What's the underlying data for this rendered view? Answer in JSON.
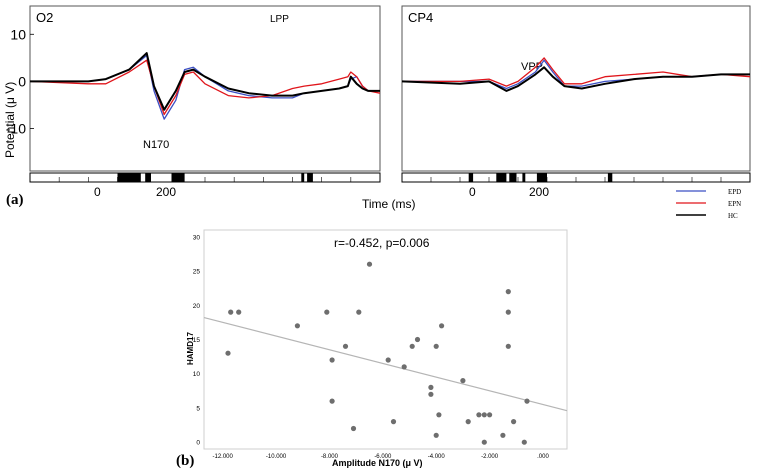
{
  "chart_data": [
    {
      "type": "line",
      "panel_label": "(a)",
      "title": "O2",
      "ylabel": "Potential (μ V)",
      "yticks": [
        "10",
        "0",
        "-10"
      ],
      "ylim": [
        -19,
        16
      ],
      "xlim": [
        -300,
        900
      ],
      "xticks": [
        "0",
        "200"
      ],
      "xlabel": "Time (ms)",
      "annotations": [
        "N170",
        "LPP"
      ],
      "series": [
        {
          "name": "EPD",
          "color": "#3b4fc4",
          "x": [
            -300,
            -100,
            -40,
            40,
            100,
            125,
            160,
            200,
            230,
            260,
            300,
            380,
            450,
            530,
            600,
            640,
            700,
            760,
            790,
            800,
            820,
            840,
            860,
            900
          ],
          "y": [
            0,
            0,
            0.5,
            2.5,
            5.5,
            -2,
            -8,
            -4,
            2.5,
            3,
            1,
            -2,
            -3,
            -3.5,
            -3.5,
            -2.5,
            -2,
            -1.5,
            -1,
            0.5,
            1,
            -1,
            -2,
            -2
          ]
        },
        {
          "name": "EPN",
          "color": "#e0151b",
          "x": [
            -300,
            -100,
            -40,
            40,
            100,
            125,
            160,
            200,
            230,
            260,
            300,
            380,
            450,
            530,
            600,
            640,
            700,
            760,
            790,
            800,
            820,
            840,
            860,
            900
          ],
          "y": [
            0,
            -0.5,
            -0.5,
            2,
            4.5,
            -1,
            -7,
            -3,
            1.5,
            2,
            -0.5,
            -3,
            -3.5,
            -3,
            -1.5,
            -1,
            -0.5,
            0.5,
            1,
            2,
            1,
            -1,
            -2,
            -2.5
          ]
        },
        {
          "name": "HC",
          "color": "#000000",
          "x": [
            -300,
            -100,
            -40,
            40,
            100,
            125,
            160,
            200,
            230,
            260,
            300,
            380,
            450,
            530,
            600,
            640,
            700,
            760,
            790,
            800,
            820,
            840,
            860,
            900
          ],
          "y": [
            0,
            0,
            0.5,
            2.5,
            6,
            -1,
            -6,
            -2,
            2,
            2.5,
            1,
            -1.5,
            -2.5,
            -3,
            -3,
            -2.5,
            -2,
            -1.5,
            -1,
            1,
            -0.5,
            -1.5,
            -2,
            -2
          ]
        }
      ],
      "significance_bars": [
        [
          0,
          80
        ],
        [
          95,
          115
        ],
        [
          185,
          230
        ],
        [
          630,
          640
        ],
        [
          650,
          670
        ]
      ]
    },
    {
      "type": "line",
      "title": "CP4",
      "xlim": [
        -300,
        900
      ],
      "xticks": [
        "0",
        "200"
      ],
      "annotations": [
        "VPP"
      ],
      "series": [
        {
          "name": "EPD",
          "color": "#3b4fc4",
          "x": [
            -300,
            -100,
            0,
            60,
            100,
            160,
            190,
            220,
            260,
            320,
            400,
            500,
            600,
            700,
            800,
            900
          ],
          "y": [
            0,
            0,
            0,
            -1.5,
            -0.5,
            2,
            4.5,
            2,
            -1,
            -1,
            0,
            0.5,
            1,
            1,
            1.5,
            1.5
          ]
        },
        {
          "name": "EPN",
          "color": "#e0151b",
          "x": [
            -300,
            -100,
            0,
            60,
            100,
            160,
            190,
            220,
            260,
            320,
            400,
            500,
            600,
            700,
            800,
            900
          ],
          "y": [
            0,
            0,
            0.5,
            -1,
            0,
            3,
            5,
            2.5,
            -0.5,
            -0.5,
            1,
            1.5,
            2,
            1,
            1.5,
            1
          ]
        },
        {
          "name": "HC",
          "color": "#000000",
          "x": [
            -300,
            -100,
            0,
            60,
            100,
            160,
            190,
            220,
            260,
            320,
            400,
            500,
            600,
            700,
            800,
            900
          ],
          "y": [
            0,
            -0.5,
            0,
            -2,
            -1,
            1.5,
            3,
            1,
            -1,
            -1.5,
            -0.5,
            0.5,
            1,
            1,
            1.5,
            1.5
          ]
        }
      ],
      "significance_bars": [
        [
          -70,
          -55
        ],
        [
          25,
          60
        ],
        [
          70,
          95
        ],
        [
          115,
          125
        ],
        [
          165,
          200
        ],
        [
          410,
          425
        ]
      ]
    },
    {
      "type": "scatter",
      "panel_label": "(b)",
      "title": "r=-0.452, p=0.006",
      "xlabel": "Amplitude N170 (μ V)",
      "ylabel": "HAMD17",
      "xlim": [
        -12.7,
        0.9
      ],
      "ylim": [
        -1,
        31
      ],
      "xticks": [
        -12,
        -10,
        -8,
        -6,
        -4,
        -2,
        0
      ],
      "xtick_labels": [
        "-12.000",
        "-10.000",
        "-8.000",
        "-6.000",
        "-4.000",
        "-2.000",
        ".000"
      ],
      "yticks": [
        0,
        5,
        10,
        15,
        20,
        25,
        30
      ],
      "ytick_labels": [
        "0",
        "5",
        "10",
        "15",
        "20",
        "25",
        "30"
      ],
      "points": [
        [
          -11.8,
          13
        ],
        [
          -11.7,
          19
        ],
        [
          -11.4,
          19
        ],
        [
          -9.2,
          17
        ],
        [
          -8.1,
          19
        ],
        [
          -7.9,
          12
        ],
        [
          -7.9,
          6
        ],
        [
          -7.4,
          14
        ],
        [
          -7.1,
          2
        ],
        [
          -6.9,
          19
        ],
        [
          -6.5,
          26
        ],
        [
          -5.8,
          12
        ],
        [
          -5.6,
          3
        ],
        [
          -5.2,
          11
        ],
        [
          -4.9,
          14
        ],
        [
          -4.7,
          15
        ],
        [
          -4.2,
          8
        ],
        [
          -4.2,
          7
        ],
        [
          -4.0,
          1
        ],
        [
          -3.9,
          4
        ],
        [
          -4.0,
          14
        ],
        [
          -3.8,
          17
        ],
        [
          -3.0,
          9
        ],
        [
          -2.8,
          3
        ],
        [
          -2.4,
          4
        ],
        [
          -2.2,
          4
        ],
        [
          -2.2,
          0
        ],
        [
          -2.0,
          4
        ],
        [
          -1.5,
          1
        ],
        [
          -1.3,
          14
        ],
        [
          -1.3,
          19
        ],
        [
          -1.3,
          22
        ],
        [
          -1.1,
          3
        ],
        [
          -0.7,
          0
        ],
        [
          -0.6,
          6
        ]
      ],
      "trendline": {
        "x": [
          -12.7,
          0.9
        ],
        "y": [
          18.2,
          4.6
        ]
      }
    }
  ],
  "legend": {
    "placement": "bottom-right",
    "items": [
      {
        "label": "EPD",
        "color": "#3b4fc4"
      },
      {
        "label": "EPN",
        "color": "#e0151b"
      },
      {
        "label": "HC",
        "color": "#000000"
      }
    ]
  }
}
